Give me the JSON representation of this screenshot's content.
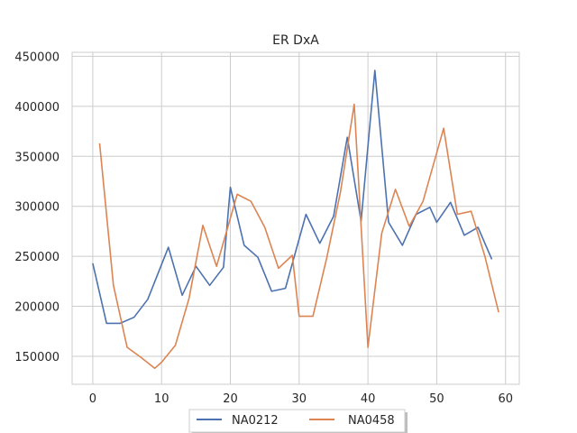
{
  "chart_data": {
    "type": "line",
    "title": "ER DxA",
    "xlabel": "",
    "ylabel": "",
    "xlim": [
      -3,
      62
    ],
    "ylim": [
      122000,
      454000
    ],
    "xticks": [
      0,
      10,
      20,
      30,
      40,
      50,
      60
    ],
    "yticks": [
      150000,
      200000,
      250000,
      300000,
      350000,
      400000,
      450000
    ],
    "grid": true,
    "legend_position": "bottom-center",
    "series": [
      {
        "name": "NA0212",
        "color": "#4c72b0",
        "x": [
          0,
          2,
          4,
          6,
          8,
          11,
          13,
          15,
          17,
          19,
          20,
          22,
          24,
          26,
          28,
          31,
          33,
          35,
          37,
          39,
          41,
          43,
          45,
          47,
          49,
          50,
          52,
          54,
          56,
          58
        ],
        "y": [
          243000,
          183000,
          183000,
          189000,
          207000,
          259000,
          211000,
          240000,
          221000,
          239000,
          319000,
          261000,
          249000,
          215000,
          218000,
          292000,
          263000,
          290000,
          369000,
          285000,
          436000,
          284000,
          261000,
          292000,
          299000,
          284000,
          304000,
          271000,
          279000,
          247000
        ]
      },
      {
        "name": "NA0458",
        "color": "#dd8452",
        "x": [
          1,
          3,
          5,
          7,
          9,
          10,
          12,
          14,
          16,
          18,
          21,
          23,
          25,
          27,
          29,
          30,
          32,
          34,
          36,
          38,
          40,
          42,
          44,
          46,
          48,
          51,
          53,
          55,
          57,
          59
        ],
        "y": [
          363000,
          221000,
          159000,
          149000,
          138000,
          144000,
          161000,
          208000,
          281000,
          240000,
          312000,
          305000,
          279000,
          238000,
          251000,
          190000,
          190000,
          248000,
          314000,
          402000,
          159000,
          273000,
          317000,
          280000,
          305000,
          378000,
          292000,
          295000,
          250000,
          194000
        ]
      }
    ]
  }
}
